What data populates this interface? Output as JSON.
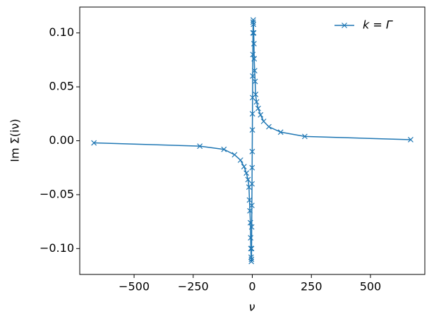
{
  "chart_data": {
    "type": "line",
    "x_label": "ν",
    "y_label": "Im Σ(iν)",
    "x": [
      -670,
      -222,
      -120,
      -75,
      -50,
      -35,
      -25,
      -18,
      -14,
      -12,
      -10,
      -8,
      -7,
      -6,
      -5,
      -4,
      -3.5,
      -3,
      -2.5,
      -1.8,
      -1.2,
      -0.7,
      -0.3,
      0.3,
      0.7,
      1.2,
      1.8,
      2.5,
      3,
      3.5,
      4,
      5,
      6,
      7,
      8,
      10,
      12,
      14,
      18,
      25,
      35,
      48,
      70,
      120,
      222,
      670
    ],
    "series": [
      {
        "name": "k = Γ",
        "color": "#1f77b4",
        "values": [
          -0.002,
          -0.005,
          -0.008,
          -0.013,
          -0.018,
          -0.024,
          -0.03,
          -0.036,
          -0.043,
          -0.055,
          -0.065,
          -0.076,
          -0.09,
          -0.1,
          -0.108,
          -0.112,
          -0.11,
          -0.1,
          -0.08,
          -0.06,
          -0.04,
          -0.025,
          -0.01,
          0.01,
          0.025,
          0.04,
          0.06,
          0.08,
          0.1,
          0.11,
          0.112,
          0.108,
          0.1,
          0.09,
          0.076,
          0.065,
          0.055,
          0.043,
          0.036,
          0.03,
          0.024,
          0.018,
          0.013,
          0.008,
          0.004,
          0.001
        ]
      }
    ],
    "xlim": [
      -730,
      730
    ],
    "xticks": [
      {
        "value": -500,
        "label": "−500"
      },
      {
        "value": -250,
        "label": "−250"
      },
      0,
      250,
      500
    ],
    "ylim": [
      -0.124,
      0.124
    ],
    "yticks": [
      {
        "value": -0.1,
        "label": "−0.10"
      },
      {
        "value": -0.05,
        "label": "−0.05"
      },
      {
        "value": 0,
        "label": "0.00"
      },
      {
        "value": 0.05,
        "label": "0.05"
      },
      {
        "value": 0.1,
        "label": "0.10"
      }
    ],
    "legend": "upper right",
    "marker": "x"
  }
}
